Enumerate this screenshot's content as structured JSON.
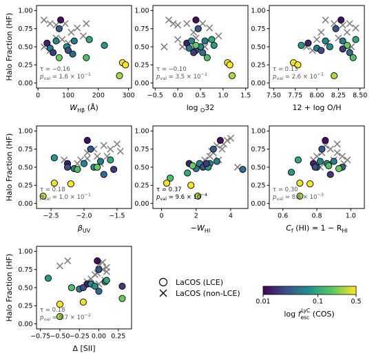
{
  "colorbar": {
    "label": "log f_esc^LyC (COS)",
    "label_main": "log ",
    "label_f": "f",
    "label_sup": "LyC",
    "label_sub": "esc",
    "label_tail": " (COS)",
    "ticks": [
      "0.01",
      "0.1",
      "0.5"
    ],
    "tick_values": [
      0.01,
      0.1,
      0.5
    ],
    "colors": [
      "#440154",
      "#3b528b",
      "#21918c",
      "#5ec962",
      "#fde725"
    ]
  },
  "legend": {
    "lce_label": "LaCOS (LCE)",
    "nonlce_label": "LaCOS (non-LCE)"
  },
  "chart_data": [
    {
      "type": "scatter",
      "xlabel": "W_Hβ (Å)",
      "xlabel_parts": [
        "W",
        "Hβ",
        " (Å)"
      ],
      "ylabel": "Halo Fraction (HF)",
      "xlim": [
        -5,
        310
      ],
      "ylim": [
        -0.07,
        1.07
      ],
      "xticks": [
        0,
        100,
        200,
        300
      ],
      "xticklabels": [
        "0",
        "100",
        "200",
        "300"
      ],
      "yticks": [
        0.0,
        0.25,
        0.5,
        0.75,
        1.0
      ],
      "yticklabels": [
        "0.00",
        "0.25",
        "0.50",
        "0.75",
        "1.00"
      ],
      "tau": "τ = −0.16",
      "pval_base": "1.6 × 10",
      "pval_exp": "−1",
      "highlight": false,
      "lce": [
        [
          75,
          0.87,
          0.012
        ],
        [
          70,
          0.75,
          0.03
        ],
        [
          30,
          0.55,
          0.015
        ],
        [
          40,
          0.48,
          0.05
        ],
        [
          60,
          0.58,
          0.06
        ],
        [
          95,
          0.5,
          0.07
        ],
        [
          120,
          0.58,
          0.05
        ],
        [
          115,
          0.4,
          0.04
        ],
        [
          100,
          0.45,
          0.025
        ],
        [
          170,
          0.6,
          0.1
        ],
        [
          220,
          0.52,
          0.08
        ],
        [
          160,
          0.35,
          0.15
        ],
        [
          70,
          0.35,
          0.2
        ],
        [
          280,
          0.28,
          0.45
        ],
        [
          290,
          0.25,
          0.5
        ],
        [
          270,
          0.1,
          0.3
        ],
        [
          50,
          0.42,
          0.02
        ]
      ],
      "nonlce": [
        [
          20,
          0.87
        ],
        [
          40,
          0.82
        ],
        [
          60,
          0.8
        ],
        [
          90,
          0.82
        ],
        [
          130,
          0.76
        ],
        [
          160,
          0.82
        ],
        [
          110,
          0.7
        ],
        [
          150,
          0.65
        ],
        [
          60,
          0.62
        ],
        [
          80,
          0.6
        ],
        [
          20,
          0.5
        ],
        [
          40,
          0.45
        ],
        [
          100,
          0.55
        ]
      ]
    },
    {
      "type": "scatter",
      "xlabel": "log O_32",
      "xlabel_parts": [
        "log ",
        "O",
        "32"
      ],
      "ylabel": "",
      "xlim": [
        -0.55,
        1.55
      ],
      "ylim": [
        -0.07,
        1.07
      ],
      "xticks": [
        -0.5,
        0.0,
        0.5,
        1.0,
        1.5
      ],
      "xticklabels": [
        "−0.5",
        "0.0",
        "0.5",
        "1.0",
        "1.5"
      ],
      "yticks": [
        0.0,
        0.25,
        0.5,
        0.75,
        1.0
      ],
      "yticklabels": [
        "0.00",
        "0.25",
        "0.50",
        "0.75",
        "1.00"
      ],
      "tau": "τ = −0.10",
      "pval_base": "3.5 × 10",
      "pval_exp": "−1",
      "highlight": false,
      "lce": [
        [
          0.4,
          0.87,
          0.012
        ],
        [
          0.45,
          0.75,
          0.03
        ],
        [
          0.2,
          0.55,
          0.015
        ],
        [
          0.25,
          0.48,
          0.05
        ],
        [
          0.3,
          0.58,
          0.06
        ],
        [
          0.5,
          0.5,
          0.07
        ],
        [
          0.6,
          0.58,
          0.05
        ],
        [
          0.55,
          0.42,
          0.04
        ],
        [
          0.4,
          0.45,
          0.025
        ],
        [
          0.75,
          0.6,
          0.1
        ],
        [
          0.8,
          0.52,
          0.08
        ],
        [
          0.4,
          0.52,
          0.2
        ],
        [
          0.65,
          0.35,
          0.15
        ],
        [
          1.1,
          0.28,
          0.45
        ],
        [
          1.15,
          0.25,
          0.5
        ],
        [
          1.2,
          0.1,
          0.3
        ],
        [
          0.35,
          0.42,
          0.02
        ]
      ],
      "nonlce": [
        [
          -0.2,
          0.87
        ],
        [
          -0.1,
          0.82
        ],
        [
          0.0,
          0.8
        ],
        [
          0.2,
          0.82
        ],
        [
          0.35,
          0.7
        ],
        [
          0.55,
          0.82
        ],
        [
          0.7,
          0.76
        ],
        [
          -0.3,
          0.5
        ],
        [
          0.1,
          0.5
        ],
        [
          0.4,
          0.62
        ],
        [
          0.9,
          0.65
        ],
        [
          0.0,
          0.6
        ],
        [
          0.6,
          0.5
        ]
      ]
    },
    {
      "type": "scatter",
      "xlabel": "12 + log O/H",
      "xlabel_parts": [
        "12 + log O/H",
        "",
        ""
      ],
      "ylabel": "",
      "xlim": [
        7.45,
        8.55
      ],
      "ylim": [
        -0.07,
        1.07
      ],
      "xticks": [
        7.5,
        7.75,
        8.0,
        8.25,
        8.5
      ],
      "xticklabels": [
        "7.50",
        "7.75",
        "8.00",
        "8.25",
        "8.50"
      ],
      "yticks": [
        0.0,
        0.25,
        0.5,
        0.75,
        1.0
      ],
      "yticklabels": [
        "0.00",
        "0.25",
        "0.50",
        "0.75",
        "1.00"
      ],
      "tau": "τ = 0.13",
      "pval_base": "2.6 × 10",
      "pval_exp": "−1",
      "highlight": false,
      "lce": [
        [
          8.28,
          0.87,
          0.012
        ],
        [
          8.22,
          0.75,
          0.03
        ],
        [
          7.9,
          0.55,
          0.015
        ],
        [
          8.0,
          0.48,
          0.05
        ],
        [
          8.1,
          0.58,
          0.06
        ],
        [
          8.15,
          0.5,
          0.07
        ],
        [
          8.3,
          0.58,
          0.05
        ],
        [
          8.38,
          0.42,
          0.04
        ],
        [
          8.05,
          0.45,
          0.025
        ],
        [
          8.45,
          0.6,
          0.1
        ],
        [
          7.82,
          0.52,
          0.08
        ],
        [
          8.42,
          0.35,
          0.15
        ],
        [
          8.35,
          0.52,
          0.2
        ],
        [
          7.73,
          0.28,
          0.45
        ],
        [
          7.78,
          0.25,
          0.5
        ],
        [
          8.2,
          0.1,
          0.3
        ],
        [
          8.3,
          0.47,
          0.02
        ]
      ],
      "nonlce": [
        [
          8.1,
          0.87
        ],
        [
          8.2,
          0.82
        ],
        [
          8.3,
          0.8
        ],
        [
          8.38,
          0.82
        ],
        [
          8.45,
          0.76
        ],
        [
          7.88,
          0.5
        ],
        [
          8.0,
          0.6
        ],
        [
          8.25,
          0.62
        ],
        [
          8.35,
          0.7
        ],
        [
          8.12,
          0.55
        ],
        [
          8.4,
          0.5
        ],
        [
          8.05,
          0.7
        ],
        [
          7.95,
          0.45
        ]
      ]
    },
    {
      "type": "scatter",
      "xlabel": "β_UV",
      "xlabel_parts": [
        "β",
        "UV",
        ""
      ],
      "ylabel": "Halo Fraction (HF)",
      "xlim": [
        -2.72,
        -1.28
      ],
      "ylim": [
        -0.07,
        1.07
      ],
      "xticks": [
        -2.5,
        -2.0,
        -1.5
      ],
      "xticklabels": [
        "−2.5",
        "−2.0",
        "−1.5"
      ],
      "yticks": [
        0.0,
        0.25,
        0.5,
        0.75,
        1.0
      ],
      "yticklabels": [
        "0.00",
        "0.25",
        "0.50",
        "0.75",
        "1.00"
      ],
      "tau": "τ = 0.18",
      "pval_base": "1.0 × 10",
      "pval_exp": "−1",
      "highlight": false,
      "lce": [
        [
          -1.95,
          0.87,
          0.012
        ],
        [
          -1.9,
          0.75,
          0.03
        ],
        [
          -2.25,
          0.55,
          0.015
        ],
        [
          -2.15,
          0.48,
          0.05
        ],
        [
          -2.0,
          0.55,
          0.06
        ],
        [
          -1.85,
          0.5,
          0.07
        ],
        [
          -1.75,
          0.58,
          0.05
        ],
        [
          -1.7,
          0.4,
          0.04
        ],
        [
          -2.25,
          0.5,
          0.025
        ],
        [
          -1.6,
          0.6,
          0.1
        ],
        [
          -2.45,
          0.63,
          0.08
        ],
        [
          -2.1,
          0.47,
          0.15
        ],
        [
          -1.8,
          0.5,
          0.2
        ],
        [
          -2.45,
          0.28,
          0.45
        ],
        [
          -2.2,
          0.27,
          0.5
        ],
        [
          -2.62,
          0.1,
          0.3
        ],
        [
          -1.55,
          0.47,
          0.02
        ]
      ],
      "nonlce": [
        [
          -1.5,
          0.82
        ],
        [
          -1.6,
          0.75
        ],
        [
          -1.7,
          0.8
        ],
        [
          -1.85,
          0.75
        ],
        [
          -1.95,
          0.7
        ],
        [
          -2.05,
          0.6
        ],
        [
          -1.95,
          0.62
        ],
        [
          -2.1,
          0.55
        ],
        [
          -1.65,
          0.65
        ],
        [
          -1.45,
          0.72
        ],
        [
          -2.3,
          0.6
        ],
        [
          -1.75,
          0.55
        ],
        [
          -1.8,
          0.65
        ]
      ]
    },
    {
      "type": "scatter",
      "xlabel": "−W_HI",
      "xlabel_parts": [
        "−W",
        "HI",
        ""
      ],
      "ylabel": "",
      "xlim": [
        -0.5,
        5.0
      ],
      "ylim": [
        -0.07,
        1.07
      ],
      "xticks": [
        0,
        2,
        4
      ],
      "xticklabels": [
        "0",
        "2",
        "4"
      ],
      "yticks": [
        0.0,
        0.25,
        0.5,
        0.75,
        1.0
      ],
      "yticklabels": [
        "0.00",
        "0.25",
        "0.50",
        "0.75",
        "1.00"
      ],
      "tau": "τ = 0.37",
      "pval_base": "9.6 × 10",
      "pval_exp": "−4",
      "highlight": true,
      "lce": [
        [
          3.4,
          0.87,
          0.012
        ],
        [
          3.0,
          0.75,
          0.03
        ],
        [
          1.6,
          0.55,
          0.015
        ],
        [
          2.0,
          0.48,
          0.05
        ],
        [
          2.2,
          0.55,
          0.06
        ],
        [
          2.8,
          0.55,
          0.07
        ],
        [
          3.2,
          0.58,
          0.05
        ],
        [
          4.7,
          0.47,
          0.04
        ],
        [
          2.4,
          0.5,
          0.025
        ],
        [
          1.5,
          0.42,
          0.1
        ],
        [
          2.7,
          0.5,
          0.08
        ],
        [
          0.5,
          0.35,
          0.15
        ],
        [
          1.8,
          0.52,
          0.2
        ],
        [
          0.3,
          0.28,
          0.45
        ],
        [
          1.7,
          0.25,
          0.5
        ],
        [
          2.1,
          0.1,
          0.3
        ],
        [
          2.6,
          0.55,
          0.02
        ]
      ],
      "nonlce": [
        [
          3.8,
          0.87
        ],
        [
          3.2,
          0.8
        ],
        [
          2.8,
          0.65
        ],
        [
          3.0,
          0.7
        ],
        [
          2.5,
          0.6
        ],
        [
          2.2,
          0.5
        ],
        [
          3.5,
          0.75
        ],
        [
          4.0,
          0.9
        ],
        [
          3.3,
          0.6
        ],
        [
          2.6,
          0.55
        ],
        [
          4.4,
          0.5
        ],
        [
          2.9,
          0.72
        ],
        [
          3.6,
          0.82
        ]
      ]
    },
    {
      "type": "scatter",
      "xlabel": "C_f (HI) = 1 − R_HI",
      "xlabel_parts": [
        "C",
        "f",
        " (HI) = 1 − R",
        "HI"
      ],
      "ylabel": "",
      "xlim": [
        0.52,
        1.08
      ],
      "ylim": [
        -0.07,
        1.07
      ],
      "xticks": [
        0.6,
        0.8,
        1.0
      ],
      "xticklabels": [
        "0.6",
        "0.8",
        "1.0"
      ],
      "yticks": [
        0.0,
        0.25,
        0.5,
        0.75,
        1.0
      ],
      "yticklabels": [
        "0.00",
        "0.25",
        "0.50",
        "0.75",
        "1.00"
      ],
      "tau": "τ = 0.30",
      "pval_base": "8.6 × 10",
      "pval_exp": "−3",
      "highlight": false,
      "lce": [
        [
          0.85,
          0.87,
          0.012
        ],
        [
          0.83,
          0.75,
          0.03
        ],
        [
          0.78,
          0.55,
          0.015
        ],
        [
          0.8,
          0.5,
          0.05
        ],
        [
          0.82,
          0.58,
          0.06
        ],
        [
          0.86,
          0.55,
          0.07
        ],
        [
          0.9,
          0.58,
          0.05
        ],
        [
          0.95,
          0.5,
          0.04
        ],
        [
          0.79,
          0.5,
          0.025
        ],
        [
          0.69,
          0.6,
          0.1
        ],
        [
          0.65,
          0.43,
          0.08
        ],
        [
          0.87,
          0.52,
          0.15
        ],
        [
          0.93,
          0.48,
          0.2
        ],
        [
          0.7,
          0.28,
          0.45
        ],
        [
          0.76,
          0.27,
          0.5
        ],
        [
          0.7,
          0.1,
          0.3
        ],
        [
          0.88,
          0.4,
          0.02
        ]
      ],
      "nonlce": [
        [
          0.85,
          0.8
        ],
        [
          0.88,
          0.75
        ],
        [
          0.92,
          0.7
        ],
        [
          0.8,
          0.65
        ],
        [
          0.83,
          0.7
        ],
        [
          0.9,
          0.6
        ],
        [
          0.95,
          0.65
        ],
        [
          0.87,
          0.55
        ],
        [
          0.98,
          0.6
        ],
        [
          0.78,
          0.6
        ],
        [
          0.92,
          0.82
        ],
        [
          0.82,
          0.5
        ],
        [
          0.96,
          0.55
        ]
      ]
    },
    {
      "type": "scatter",
      "xlabel": "Δ [SII]",
      "xlabel_parts": [
        "Δ [SII]",
        "",
        ""
      ],
      "ylabel": "Halo Fraction (HF)",
      "xlim": [
        -0.8,
        0.42
      ],
      "ylim": [
        -0.07,
        1.07
      ],
      "xticks": [
        -0.75,
        -0.5,
        -0.25,
        0.0,
        0.25
      ],
      "xticklabels": [
        "−0.75",
        "−0.50",
        "−0.25",
        "0.00",
        "0.25"
      ],
      "yticks": [
        0.0,
        0.25,
        0.5,
        0.75,
        1.0
      ],
      "yticklabels": [
        "0.00",
        "0.25",
        "0.50",
        "0.75",
        "1.00"
      ],
      "tau": "τ = 0.18",
      "pval_base": "9.7 × 10",
      "pval_exp": "−2",
      "highlight": false,
      "lce": [
        [
          -0.02,
          0.87,
          0.012
        ],
        [
          0.0,
          0.75,
          0.03
        ],
        [
          -0.15,
          0.55,
          0.015
        ],
        [
          -0.25,
          0.48,
          0.05
        ],
        [
          -0.1,
          0.55,
          0.06
        ],
        [
          -0.05,
          0.52,
          0.07
        ],
        [
          0.08,
          0.58,
          0.05
        ],
        [
          0.0,
          0.45,
          0.04
        ],
        [
          -0.2,
          0.5,
          0.025
        ],
        [
          0.1,
          0.6,
          0.1
        ],
        [
          -0.65,
          0.63,
          0.08
        ],
        [
          -0.35,
          0.5,
          0.15
        ],
        [
          0.3,
          0.35,
          0.2
        ],
        [
          -0.2,
          0.3,
          0.45
        ],
        [
          -0.5,
          0.27,
          0.5
        ],
        [
          -0.5,
          0.1,
          0.3
        ],
        [
          0.3,
          0.52,
          0.02
        ]
      ],
      "nonlce": [
        [
          -0.4,
          0.87
        ],
        [
          -0.5,
          0.8
        ],
        [
          0.0,
          0.82
        ],
        [
          0.05,
          0.75
        ],
        [
          0.1,
          0.72
        ],
        [
          -0.05,
          0.68
        ],
        [
          0.08,
          0.6
        ],
        [
          -0.1,
          0.62
        ],
        [
          0.05,
          0.85
        ],
        [
          0.0,
          0.55
        ],
        [
          -0.15,
          0.58
        ],
        [
          0.1,
          0.78
        ],
        [
          -0.02,
          0.7
        ]
      ]
    }
  ]
}
